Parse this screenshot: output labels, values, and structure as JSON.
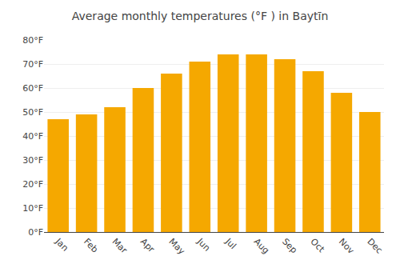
{
  "chart_data": {
    "type": "bar",
    "title": "Average monthly temperatures (°F ) in Baytīn",
    "categories": [
      "Jan",
      "Feb",
      "Mar",
      "Apr",
      "May",
      "Jun",
      "Jul",
      "Aug",
      "Sep",
      "Oct",
      "Nov",
      "Dec"
    ],
    "values": [
      47,
      49,
      52,
      60,
      66,
      71,
      74,
      74,
      72,
      67,
      58,
      50
    ],
    "color": "#F5A800",
    "ylim": [
      0,
      80
    ],
    "yticks": [
      {
        "value": 0,
        "label": "0°F"
      },
      {
        "value": 10,
        "label": "10°F"
      },
      {
        "value": 20,
        "label": "20°F"
      },
      {
        "value": 30,
        "label": "30°F"
      },
      {
        "value": 40,
        "label": "40°F"
      },
      {
        "value": 50,
        "label": "50°F"
      },
      {
        "value": 60,
        "label": "60°F"
      },
      {
        "value": 70,
        "label": "70°F"
      },
      {
        "value": 80,
        "label": "80°F"
      }
    ],
    "grid": true
  }
}
